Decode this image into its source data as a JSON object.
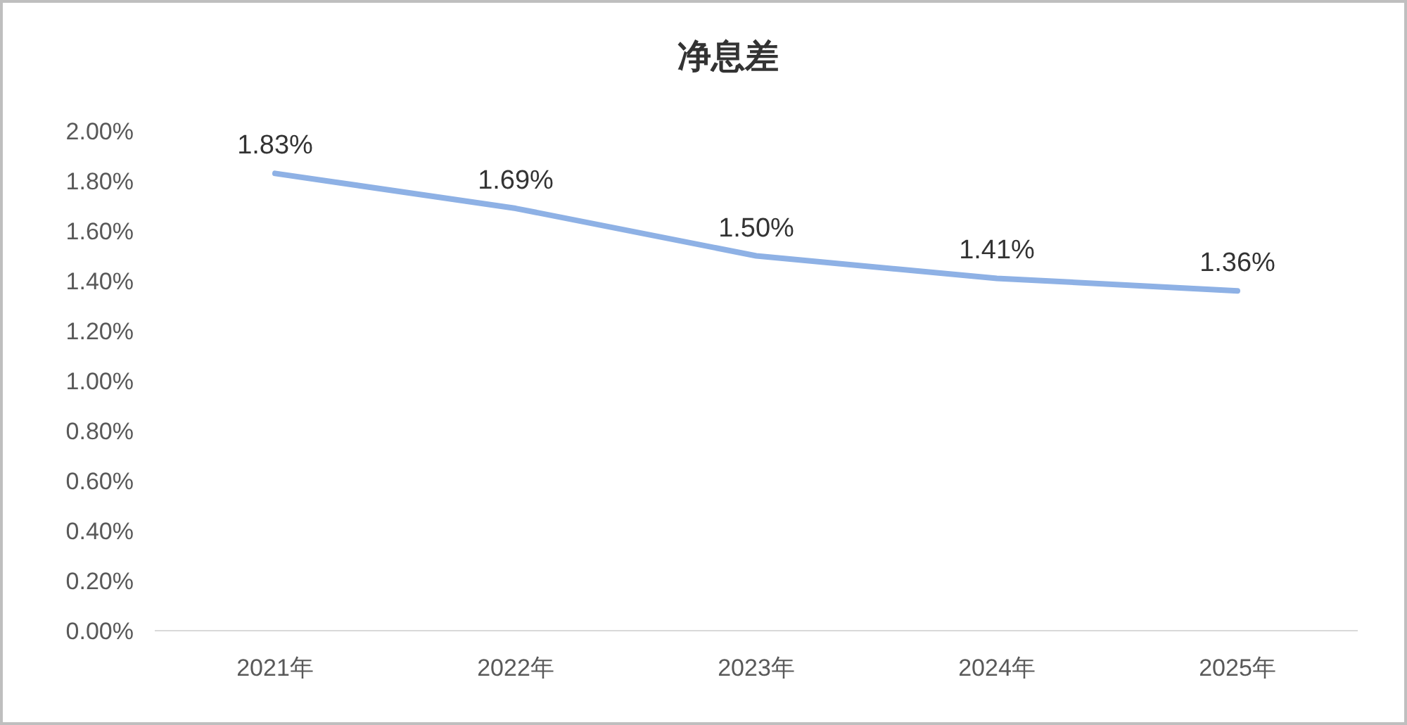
{
  "chart_data": {
    "type": "line",
    "title": "净息差",
    "categories": [
      "2021年",
      "2022年",
      "2023年",
      "2024年",
      "2025年"
    ],
    "series": [
      {
        "color": "#8eb1e5",
        "values": [
          1.83,
          1.69,
          1.5,
          1.41,
          1.36
        ],
        "value_labels": [
          "1.83%",
          "1.69%",
          "1.50%",
          "1.41%",
          "1.36%"
        ]
      }
    ],
    "ylim": [
      0,
      2
    ],
    "yticks": [
      {
        "value": 0,
        "label": "0.00%"
      },
      {
        "value": 0.2,
        "label": "0.20%"
      },
      {
        "value": 0.4,
        "label": "0.40%"
      },
      {
        "value": 0.6,
        "label": "0.60%"
      },
      {
        "value": 0.8,
        "label": "0.80%"
      },
      {
        "value": 1,
        "label": "1.00%"
      },
      {
        "value": 1.2,
        "label": "1.20%"
      },
      {
        "value": 1.4,
        "label": "1.40%"
      },
      {
        "value": 1.6,
        "label": "1.60%"
      },
      {
        "value": 1.8,
        "label": "1.80%"
      },
      {
        "value": 2,
        "label": "2.00%"
      }
    ],
    "marker": "none",
    "line_style": "solid"
  }
}
